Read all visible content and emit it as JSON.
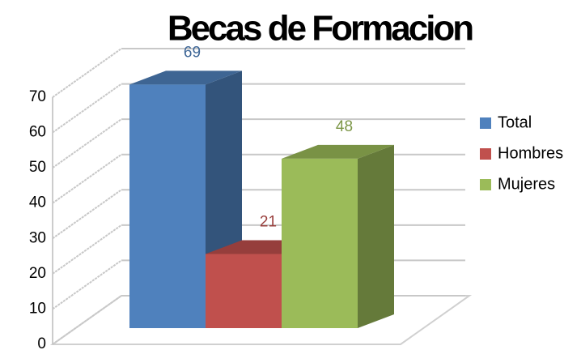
{
  "chart_data": {
    "type": "bar",
    "title": "Becas de Formacion",
    "series": [
      {
        "name": "Total",
        "color": "#4f81bd",
        "values": [
          69
        ]
      },
      {
        "name": "Hombres",
        "color": "#c0504d",
        "values": [
          21
        ]
      },
      {
        "name": "Mujeres",
        "color": "#9bbb59",
        "values": [
          48
        ]
      }
    ],
    "ylim": [
      0,
      70
    ],
    "yticks": [
      0,
      10,
      20,
      30,
      40,
      50,
      60,
      70
    ],
    "grid": true,
    "legend": "right"
  }
}
